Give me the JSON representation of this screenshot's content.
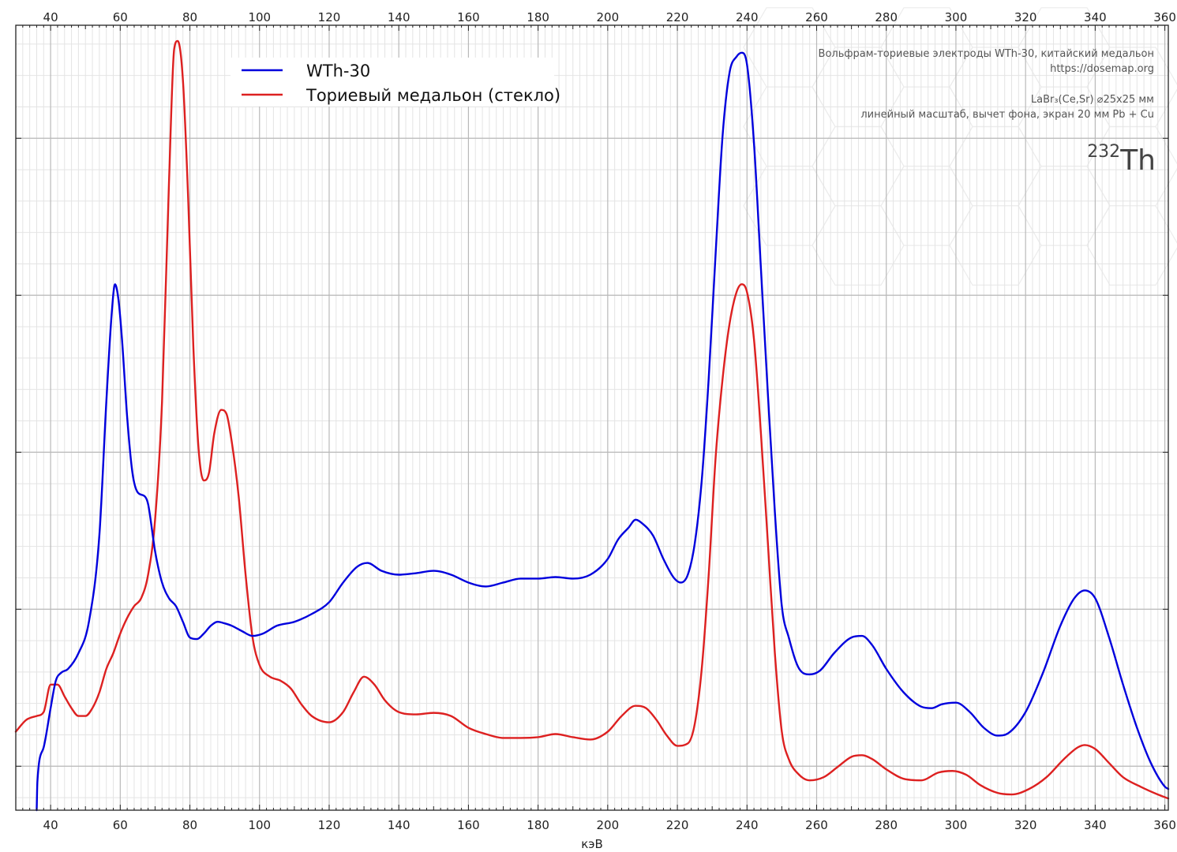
{
  "chart_data": {
    "type": "line",
    "title": "",
    "xlabel": "кэВ",
    "ylabel": "",
    "xlim": [
      30,
      361
    ],
    "ylim": [
      0,
      1
    ],
    "x_ticks": [
      40,
      60,
      80,
      100,
      120,
      140,
      160,
      180,
      200,
      220,
      240,
      260,
      280,
      300,
      320,
      340,
      360
    ],
    "y_gridlines": [
      0.056,
      0.256,
      0.456,
      0.656,
      0.856
    ],
    "grid": true,
    "legend_position": "top-left",
    "series": [
      {
        "name": "WTh-30",
        "color": "#0000dd",
        "points": [
          [
            36,
            0.0
          ],
          [
            36.2,
            0.036
          ],
          [
            38,
            0.08
          ],
          [
            40,
            0.13
          ],
          [
            41.5,
            0.165
          ],
          [
            43,
            0.175
          ],
          [
            45,
            0.18
          ],
          [
            48,
            0.2
          ],
          [
            51,
            0.24
          ],
          [
            54,
            0.35
          ],
          [
            56,
            0.52
          ],
          [
            57.5,
            0.63
          ],
          [
            58.5,
            0.67
          ],
          [
            59.5,
            0.65
          ],
          [
            60.5,
            0.6
          ],
          [
            62,
            0.5
          ],
          [
            63.5,
            0.43
          ],
          [
            65,
            0.405
          ],
          [
            67,
            0.4
          ],
          [
            68,
            0.39
          ],
          [
            70,
            0.33
          ],
          [
            72,
            0.29
          ],
          [
            74,
            0.27
          ],
          [
            76,
            0.26
          ],
          [
            78,
            0.24
          ],
          [
            80,
            0.22
          ],
          [
            82,
            0.218
          ],
          [
            84,
            0.225
          ],
          [
            86,
            0.235
          ],
          [
            88,
            0.24
          ],
          [
            90,
            0.238
          ],
          [
            92,
            0.235
          ],
          [
            95,
            0.228
          ],
          [
            98,
            0.222
          ],
          [
            101,
            0.225
          ],
          [
            105,
            0.235
          ],
          [
            110,
            0.24
          ],
          [
            115,
            0.25
          ],
          [
            120,
            0.265
          ],
          [
            124,
            0.29
          ],
          [
            128,
            0.31
          ],
          [
            131,
            0.315
          ],
          [
            135,
            0.305
          ],
          [
            140,
            0.3
          ],
          [
            145,
            0.302
          ],
          [
            150,
            0.305
          ],
          [
            155,
            0.3
          ],
          [
            160,
            0.29
          ],
          [
            165,
            0.285
          ],
          [
            170,
            0.29
          ],
          [
            175,
            0.295
          ],
          [
            180,
            0.295
          ],
          [
            185,
            0.297
          ],
          [
            190,
            0.295
          ],
          [
            195,
            0.3
          ],
          [
            200,
            0.32
          ],
          [
            203,
            0.345
          ],
          [
            206,
            0.36
          ],
          [
            208,
            0.37
          ],
          [
            210,
            0.365
          ],
          [
            213,
            0.35
          ],
          [
            216,
            0.32
          ],
          [
            219,
            0.296
          ],
          [
            221,
            0.29
          ],
          [
            223,
            0.3
          ],
          [
            225,
            0.34
          ],
          [
            227,
            0.42
          ],
          [
            229,
            0.55
          ],
          [
            231,
            0.71
          ],
          [
            233,
            0.86
          ],
          [
            235,
            0.94
          ],
          [
            237,
            0.96
          ],
          [
            238.5,
            0.965
          ],
          [
            240,
            0.95
          ],
          [
            242,
            0.85
          ],
          [
            244,
            0.69
          ],
          [
            246,
            0.53
          ],
          [
            248,
            0.38
          ],
          [
            250,
            0.26
          ],
          [
            252,
            0.22
          ],
          [
            255,
            0.18
          ],
          [
            258,
            0.173
          ],
          [
            261,
            0.178
          ],
          [
            265,
            0.2
          ],
          [
            270,
            0.22
          ],
          [
            273,
            0.222
          ],
          [
            276,
            0.21
          ],
          [
            280,
            0.18
          ],
          [
            285,
            0.15
          ],
          [
            290,
            0.132
          ],
          [
            293,
            0.13
          ],
          [
            296,
            0.135
          ],
          [
            300,
            0.137
          ],
          [
            304,
            0.125
          ],
          [
            308,
            0.105
          ],
          [
            312,
            0.095
          ],
          [
            315,
            0.098
          ],
          [
            320,
            0.125
          ],
          [
            325,
            0.175
          ],
          [
            330,
            0.235
          ],
          [
            334,
            0.27
          ],
          [
            337,
            0.28
          ],
          [
            340,
            0.27
          ],
          [
            344,
            0.22
          ],
          [
            348,
            0.16
          ],
          [
            352,
            0.105
          ],
          [
            356,
            0.06
          ],
          [
            360,
            0.03
          ],
          [
            361,
            0.027
          ]
        ]
      },
      {
        "name": "Ториевый медальон (стекло)",
        "color": "#dd2020",
        "points": [
          [
            30,
            0.1
          ],
          [
            33,
            0.115
          ],
          [
            36,
            0.12
          ],
          [
            38,
            0.125
          ],
          [
            40,
            0.16
          ],
          [
            42,
            0.16
          ],
          [
            44,
            0.145
          ],
          [
            46,
            0.13
          ],
          [
            48,
            0.12
          ],
          [
            50,
            0.12
          ],
          [
            52,
            0.13
          ],
          [
            54,
            0.15
          ],
          [
            56,
            0.18
          ],
          [
            58,
            0.2
          ],
          [
            60,
            0.225
          ],
          [
            62,
            0.245
          ],
          [
            64,
            0.26
          ],
          [
            66,
            0.27
          ],
          [
            68,
            0.3
          ],
          [
            70,
            0.37
          ],
          [
            72,
            0.52
          ],
          [
            74,
            0.8
          ],
          [
            75.5,
            0.97
          ],
          [
            76.5,
            0.98
          ],
          [
            78,
            0.93
          ],
          [
            79.5,
            0.78
          ],
          [
            81,
            0.59
          ],
          [
            82.5,
            0.46
          ],
          [
            84,
            0.42
          ],
          [
            85.5,
            0.43
          ],
          [
            87,
            0.48
          ],
          [
            89,
            0.51
          ],
          [
            90.5,
            0.505
          ],
          [
            92,
            0.47
          ],
          [
            94,
            0.4
          ],
          [
            96,
            0.3
          ],
          [
            98,
            0.22
          ],
          [
            100,
            0.185
          ],
          [
            103,
            0.17
          ],
          [
            106,
            0.165
          ],
          [
            109,
            0.155
          ],
          [
            112,
            0.135
          ],
          [
            115,
            0.12
          ],
          [
            120,
            0.112
          ],
          [
            124,
            0.125
          ],
          [
            127,
            0.15
          ],
          [
            130,
            0.17
          ],
          [
            133,
            0.16
          ],
          [
            136,
            0.14
          ],
          [
            140,
            0.125
          ],
          [
            145,
            0.122
          ],
          [
            150,
            0.124
          ],
          [
            155,
            0.12
          ],
          [
            160,
            0.105
          ],
          [
            165,
            0.097
          ],
          [
            170,
            0.092
          ],
          [
            175,
            0.092
          ],
          [
            180,
            0.093
          ],
          [
            185,
            0.097
          ],
          [
            190,
            0.093
          ],
          [
            195,
            0.09
          ],
          [
            200,
            0.1
          ],
          [
            204,
            0.12
          ],
          [
            208,
            0.133
          ],
          [
            211,
            0.13
          ],
          [
            214,
            0.115
          ],
          [
            217,
            0.095
          ],
          [
            220,
            0.082
          ],
          [
            223,
            0.085
          ],
          [
            225,
            0.11
          ],
          [
            227,
            0.18
          ],
          [
            229,
            0.3
          ],
          [
            231,
            0.45
          ],
          [
            233,
            0.55
          ],
          [
            235,
            0.62
          ],
          [
            237,
            0.66
          ],
          [
            238.5,
            0.67
          ],
          [
            240,
            0.66
          ],
          [
            242,
            0.6
          ],
          [
            244,
            0.48
          ],
          [
            246,
            0.34
          ],
          [
            248,
            0.2
          ],
          [
            250,
            0.1
          ],
          [
            252,
            0.065
          ],
          [
            255,
            0.045
          ],
          [
            258,
            0.038
          ],
          [
            262,
            0.042
          ],
          [
            266,
            0.055
          ],
          [
            270,
            0.068
          ],
          [
            273,
            0.07
          ],
          [
            276,
            0.065
          ],
          [
            280,
            0.052
          ],
          [
            285,
            0.04
          ],
          [
            290,
            0.038
          ],
          [
            295,
            0.048
          ],
          [
            299,
            0.05
          ],
          [
            303,
            0.045
          ],
          [
            307,
            0.032
          ],
          [
            312,
            0.022
          ],
          [
            316,
            0.02
          ],
          [
            321,
            0.027
          ],
          [
            326,
            0.042
          ],
          [
            331,
            0.065
          ],
          [
            335,
            0.08
          ],
          [
            337,
            0.083
          ],
          [
            340,
            0.078
          ],
          [
            344,
            0.06
          ],
          [
            348,
            0.042
          ],
          [
            353,
            0.03
          ],
          [
            358,
            0.02
          ],
          [
            361,
            0.015
          ]
        ]
      }
    ]
  },
  "info": {
    "title_line": "Вольфрам-ториевые электроды WTh-30, китайский медальон",
    "url": "https://dosemap.org",
    "detector": "LaBr₃(Ce,Sr) ⌀25x25 мм",
    "conditions": "линейный масштаб, вычет фона, экран 20 мм Pb + Cu",
    "isotope_mass": "232",
    "isotope_symbol": "Th"
  }
}
